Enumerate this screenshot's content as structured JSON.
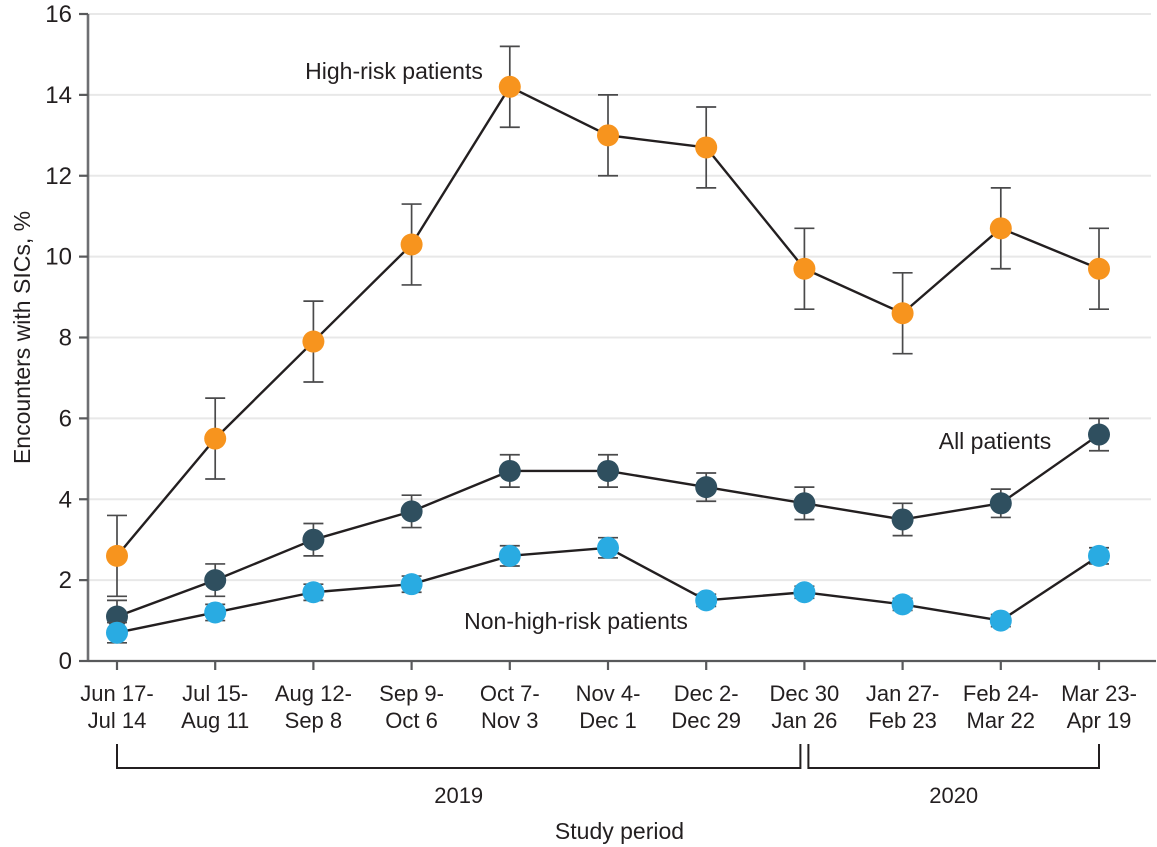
{
  "chart_data": {
    "type": "line",
    "title": "",
    "xlabel": "Study period",
    "ylabel": "Encounters with SICs, %",
    "ylim": [
      0,
      16
    ],
    "yticks": [
      0,
      2,
      4,
      6,
      8,
      10,
      12,
      14,
      16
    ],
    "grid": "horizontal",
    "legend_position": "inline-annotations",
    "categories": [
      [
        "Jun 17-",
        "Jul 14"
      ],
      [
        "Jul 15-",
        "Aug 11"
      ],
      [
        "Aug 12-",
        "Sep 8"
      ],
      [
        "Sep 9-",
        "Oct 6"
      ],
      [
        "Oct 7-",
        "Nov 3"
      ],
      [
        "Nov 4-",
        "Dec 1"
      ],
      [
        "Dec 2-",
        "Dec 29"
      ],
      [
        "Dec 30",
        "Jan 26"
      ],
      [
        "Jan 27-",
        "Feb 23"
      ],
      [
        "Feb 24-",
        "Mar 22"
      ],
      [
        "Mar 23-",
        "Apr 19"
      ]
    ],
    "series": [
      {
        "name": "High-risk patients",
        "color": "#F7941E",
        "values": [
          2.6,
          5.5,
          7.9,
          10.3,
          14.2,
          13.0,
          12.7,
          9.7,
          8.6,
          10.7,
          9.7
        ],
        "err": [
          1.0,
          1.0,
          1.0,
          1.0,
          1.0,
          1.0,
          1.0,
          1.0,
          1.0,
          1.0,
          1.0
        ]
      },
      {
        "name": "All patients",
        "color": "#2F4F5F",
        "values": [
          1.1,
          2.0,
          3.0,
          3.7,
          4.7,
          4.7,
          4.3,
          3.9,
          3.5,
          3.9,
          5.6
        ],
        "err": [
          0.4,
          0.4,
          0.4,
          0.4,
          0.4,
          0.4,
          0.35,
          0.4,
          0.4,
          0.35,
          0.4
        ]
      },
      {
        "name": "Non-high-risk patients",
        "color": "#29ABE2",
        "values": [
          0.7,
          1.2,
          1.7,
          1.9,
          2.6,
          2.8,
          1.5,
          1.7,
          1.4,
          1.0,
          2.6
        ],
        "err": [
          0.25,
          0.2,
          0.2,
          0.2,
          0.25,
          0.25,
          0.15,
          0.15,
          0.15,
          0.15,
          0.2
        ]
      }
    ],
    "annotations": [
      {
        "text": "High-risk patients",
        "x": 394,
        "y": 79,
        "anchor": "middle"
      },
      {
        "text": "All patients",
        "x": 995,
        "y": 449,
        "anchor": "middle"
      },
      {
        "text": "Non-high-risk patients",
        "x": 576,
        "y": 629,
        "anchor": "middle"
      }
    ],
    "year_groups": [
      {
        "label": "2019",
        "from": 0,
        "to": 7,
        "inset_left": 0,
        "inset_right": 4
      },
      {
        "label": "2020",
        "from": 7,
        "to": 10,
        "inset_left": 4,
        "inset_right": 0
      }
    ],
    "colors": {
      "line": "#231F20",
      "grid": "#E8E8E8",
      "axis": "#6E6F72",
      "tick": "#58595B",
      "error_bar": "#4A4A4B",
      "text": "#231F20"
    }
  }
}
